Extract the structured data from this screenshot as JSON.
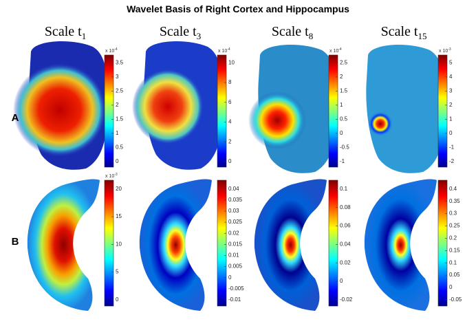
{
  "title": "Wavelet Basis of Right Cortex and Hippocampus",
  "columns": [
    {
      "text": "Scale t",
      "sub": "1"
    },
    {
      "text": "Scale t",
      "sub": "3"
    },
    {
      "text": "Scale t",
      "sub": "8"
    },
    {
      "text": "Scale t",
      "sub": "15"
    }
  ],
  "rows": [
    "A",
    "B"
  ],
  "colorbars": [
    {
      "exponent": {
        "base": "x 10",
        "power": "-4"
      },
      "ticks": [
        3.5,
        3,
        2.5,
        2,
        1.5,
        1,
        0.5,
        0
      ]
    },
    {
      "exponent": {
        "base": "x 10",
        "power": "-4"
      },
      "ticks": [
        10,
        8,
        6,
        4,
        2,
        0
      ]
    },
    {
      "exponent": {
        "base": "x 10",
        "power": "-4"
      },
      "ticks": [
        2.5,
        2,
        1.5,
        1,
        0.5,
        0,
        -0.5,
        -1
      ]
    },
    {
      "exponent": {
        "base": "x 10",
        "power": "-3"
      },
      "ticks": [
        5,
        4,
        3,
        2,
        1,
        0,
        -1,
        -2
      ]
    },
    {
      "exponent": {
        "base": "x 10",
        "power": "-3"
      },
      "ticks": [
        20,
        15,
        10,
        5,
        0
      ]
    },
    {
      "ticks": [
        0.04,
        0.035,
        0.03,
        0.025,
        0.02,
        0.015,
        0.01,
        0.005,
        0,
        -0.005,
        -0.01
      ]
    },
    {
      "ticks": [
        0.1,
        0.08,
        0.06,
        0.04,
        0.02,
        0,
        -0.02
      ]
    },
    {
      "ticks": [
        0.4,
        0.35,
        0.3,
        0.25,
        0.2,
        0.15,
        0.1,
        0.05,
        0,
        -0.05
      ]
    }
  ]
}
